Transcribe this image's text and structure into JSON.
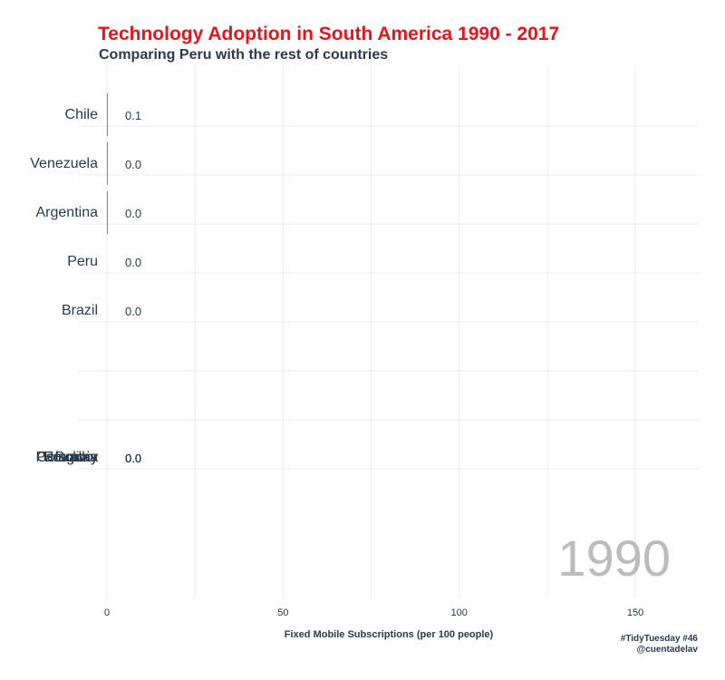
{
  "title": "Technology Adoption in South America 1990 - 2017",
  "subtitle": "Comparing Peru with the rest of countries",
  "caption": [
    "#TidyTuesday #46",
    "@cuentadelav"
  ],
  "colors": {
    "title": "#e8141c",
    "text": "#2b3a4d",
    "grid": "#ebebeb",
    "bar": "#6a6a6a",
    "year": "#bcbcbc"
  },
  "chart_data": {
    "type": "bar",
    "orientation": "horizontal",
    "year_label": "1990",
    "xlabel": "Fixed Mobile Subscriptions (per 100 people)",
    "xlim": [
      -8,
      168
    ],
    "x_ticks": [
      0,
      50,
      100,
      150
    ],
    "grid": true,
    "bars": [
      {
        "category": "Chile",
        "value": 0.1,
        "value_label": "0.1",
        "rank": 1
      },
      {
        "category": "Venezuela",
        "value": 0.0,
        "value_label": "0.0",
        "rank": 2
      },
      {
        "category": "Argentina",
        "value": 0.0,
        "value_label": "0.0",
        "rank": 3
      },
      {
        "category": "Peru",
        "value": 0.0,
        "value_label": "0.0",
        "rank": 4
      },
      {
        "category": "Brazil",
        "value": 0.0,
        "value_label": "0.0",
        "rank": 5
      },
      {
        "category": "Paraguay",
        "value": 0.0,
        "value_label": "0.0",
        "rank": 8
      },
      {
        "category": "Colombia",
        "value": 0.0,
        "value_label": "0.0",
        "rank": 8
      },
      {
        "category": "Ecuador",
        "value": 0.0,
        "value_label": "0.0",
        "rank": 8
      },
      {
        "category": "Bolivia",
        "value": 0.0,
        "value_label": "0.0",
        "rank": 8
      },
      {
        "category": "Uruguay",
        "value": 0.0,
        "value_label": "0.0",
        "rank": 8
      }
    ]
  }
}
